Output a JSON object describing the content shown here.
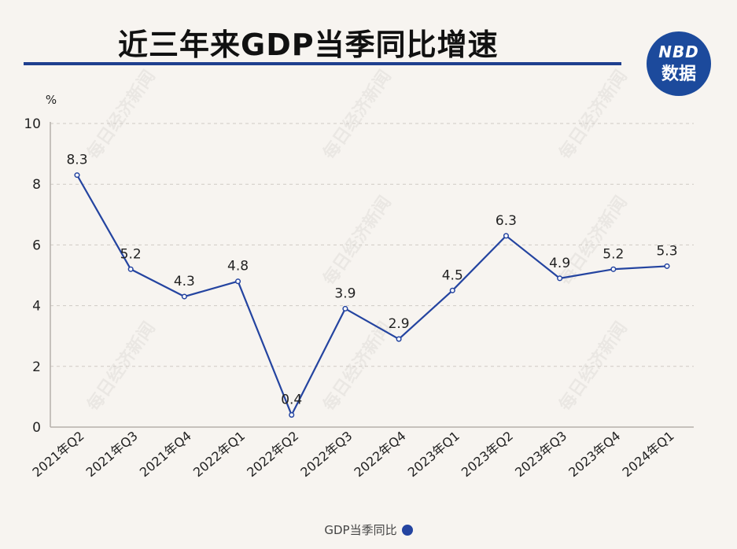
{
  "header": {
    "title": "近三年来GDP当季同比增速",
    "logo_line1": "NBD",
    "logo_line2": "数据"
  },
  "watermark": "每日经济新闻",
  "colors": {
    "line": "#2444a0",
    "accent": "#1f3f8f",
    "grid": "#cfcac4"
  },
  "chart_data": {
    "type": "line",
    "title": "近三年来GDP当季同比增速",
    "ylabel": "%",
    "ylim": [
      0,
      10
    ],
    "yticks": [
      0,
      2,
      4,
      6,
      8,
      10
    ],
    "grid": "horizontal dashed",
    "legend_position": "bottom-center",
    "categories": [
      "2021年Q2",
      "2021年Q3",
      "2021年Q4",
      "2022年Q1",
      "2022年Q2",
      "2022年Q3",
      "2022年Q4",
      "2023年Q1",
      "2023年Q2",
      "2023年Q3",
      "2023年Q4",
      "2024年Q1"
    ],
    "series": [
      {
        "name": "GDP当季同比",
        "values": [
          8.3,
          5.2,
          4.3,
          4.8,
          0.4,
          3.9,
          2.9,
          4.5,
          6.3,
          4.9,
          5.2,
          5.3
        ],
        "labels": [
          "8.3",
          "5.2",
          "4.3",
          "4.8",
          "0.4",
          "3.9",
          "2.9",
          "4.5",
          "6.3",
          "4.9",
          "5.2",
          "5.3"
        ]
      }
    ]
  }
}
